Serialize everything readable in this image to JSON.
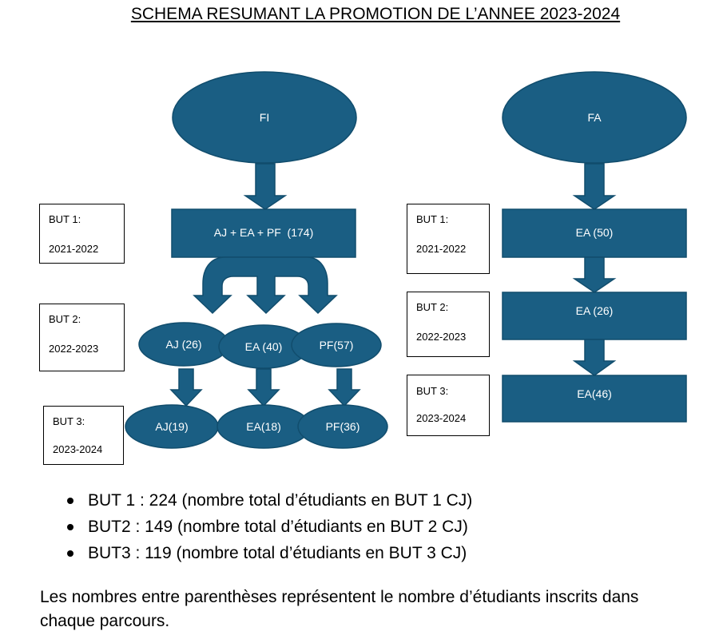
{
  "title": "SCHEMA RESUMANT LA PROMOTION DE L’ANNEE 2023-2024",
  "colors": {
    "node": "#1a5e83",
    "node_border": "#114d6d",
    "text": "#ffffff"
  },
  "fi": {
    "root": "FI",
    "but1": "AJ + EA + PF  (174)",
    "but2": {
      "aj": "AJ (26)",
      "ea": "EA (40)",
      "pf": "PF(57)"
    },
    "but3": {
      "aj": "AJ(19)",
      "ea": "EA(18)",
      "pf": "PF(36)"
    }
  },
  "fa": {
    "root": "FA",
    "but1": "EA (50)",
    "but2": "EA (26)",
    "but3": "EA(46)"
  },
  "labels_left": [
    {
      "level": "BUT 1:",
      "year": "2021-2022"
    },
    {
      "level": "BUT 2:",
      "year": "2022-2023"
    },
    {
      "level": "BUT 3:",
      "year": "2023-2024"
    }
  ],
  "labels_right": [
    {
      "level": "BUT 1:",
      "year": "2021-2022"
    },
    {
      "level": "BUT 2:",
      "year": "2022-2023"
    },
    {
      "level": "BUT 3:",
      "year": "2023-2024"
    }
  ],
  "summary": [
    "BUT 1 : 224 (nombre total d’étudiants en BUT 1 CJ)",
    "BUT2 : 149 (nombre total d’étudiants en BUT 2 CJ)",
    "BUT3 : 119 (nombre total d’étudiants en BUT 3 CJ)"
  ],
  "note": "Les nombres entre parenthèses représentent le nombre d’étudiants inscrits dans chaque parcours."
}
